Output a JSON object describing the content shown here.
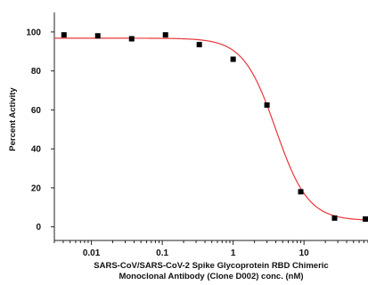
{
  "chart_data": {
    "type": "scatter",
    "title": "",
    "xlabel_line1": "SARS-CoV/SARS-CoV-2 Spike Glycoprotein RBD Chimeric",
    "xlabel_line2": "Monoclonal Antibody (Clone D002) conc. (nM)",
    "ylabel": "Percent Activity",
    "x_scale": "log",
    "xlim": [
      0.003,
      80
    ],
    "ylim": [
      -7,
      110
    ],
    "x_ticks": [
      {
        "value": 0.01,
        "label": "0.01"
      },
      {
        "value": 0.1,
        "label": "0.1"
      },
      {
        "value": 1,
        "label": "1"
      },
      {
        "value": 10,
        "label": "10"
      }
    ],
    "y_ticks": [
      {
        "value": 0,
        "label": "0"
      },
      {
        "value": 20,
        "label": "20"
      },
      {
        "value": 40,
        "label": "40"
      },
      {
        "value": 60,
        "label": "60"
      },
      {
        "value": 80,
        "label": "80"
      },
      {
        "value": 100,
        "label": "100"
      }
    ],
    "series": [
      {
        "marker_color": "#000000",
        "x": [
          0.0041,
          0.0123,
          0.037,
          0.111,
          0.333,
          1.0,
          3.0,
          9.0,
          27.0,
          81.0
        ],
        "y": [
          98.5,
          98.0,
          96.5,
          98.5,
          93.5,
          86.0,
          62.5,
          18.0,
          4.5,
          4.0
        ]
      }
    ],
    "fit": {
      "color": "#e8373a",
      "top": 96.8,
      "bottom": 3.2,
      "ec50": 4.0,
      "hill": 1.9
    },
    "grid": false
  }
}
